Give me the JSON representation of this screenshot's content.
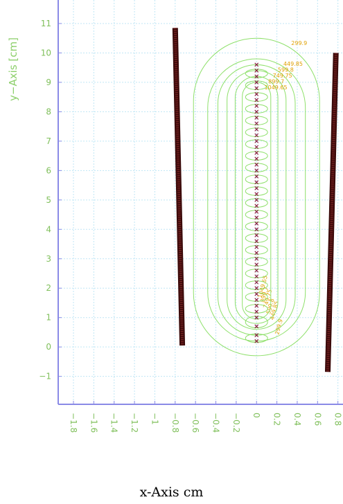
{
  "chart_data": {
    "type": "contour",
    "xlabel": "x-Axis  cm",
    "ylabel": "y−Axis [cm]",
    "xlim": [
      -1.95,
      0.85
    ],
    "ylim": [
      -1.95,
      11.8
    ],
    "x_ticks": [
      -1.8,
      -1.6,
      -1.4,
      -1.2,
      -1,
      -0.8,
      -0.6,
      -0.4,
      -0.2,
      0,
      0.2,
      0.4,
      0.6,
      0.8
    ],
    "x_tick_labels": [
      "−1.8",
      "−1.6",
      "−1.4",
      "−1.2",
      "−1",
      "−0.8",
      "−0.6",
      "−0.4",
      "−0.2",
      "0",
      "0.2",
      "0.4",
      "0.6",
      "0.8"
    ],
    "y_ticks": [
      -1,
      0,
      1,
      2,
      3,
      4,
      5,
      6,
      7,
      8,
      9,
      10,
      11
    ],
    "y_tick_labels": [
      "−1",
      "0",
      "1",
      "2",
      "3",
      "4",
      "5",
      "6",
      "7",
      "8",
      "9",
      "10",
      "11"
    ],
    "grid": true,
    "electrodes": [
      {
        "x1": -0.8,
        "y1": 10.85,
        "x2": -0.73,
        "y2": 0.05
      },
      {
        "x1": 0.78,
        "y1": 10.0,
        "x2": 0.7,
        "y2": -0.85
      }
    ],
    "charge_column": {
      "x": 0,
      "y": [
        0.2,
        0.4,
        0.7,
        1.0,
        1.2,
        1.4,
        1.6,
        1.8,
        2.0,
        2.2,
        2.4,
        2.6,
        2.8,
        3.0,
        3.2,
        3.4,
        3.6,
        3.8,
        4.0,
        4.2,
        4.4,
        4.6,
        4.8,
        5.0,
        5.2,
        5.4,
        5.6,
        5.8,
        6.0,
        6.2,
        6.4,
        6.6,
        6.8,
        7.0,
        7.2,
        7.4,
        7.6,
        7.8,
        8.0,
        8.2,
        8.4,
        8.6,
        8.8,
        9.0,
        9.2,
        9.4,
        9.6
      ]
    },
    "contour_levels": [
      {
        "label": "299.9",
        "half_width": 0.62,
        "y_top": 10.5,
        "y_bottom": -0.3
      },
      {
        "label": "449.85",
        "half_width": 0.48,
        "y_top": 9.8,
        "y_bottom": 0.2
      },
      {
        "label": "599.8",
        "half_width": 0.38,
        "y_top": 9.6,
        "y_bottom": 0.4
      },
      {
        "label": "749.75",
        "half_width": 0.29,
        "y_top": 9.4,
        "y_bottom": 0.6
      },
      {
        "label": "899.7",
        "half_width": 0.21,
        "y_top": 9.2,
        "y_bottom": 0.8
      },
      {
        "label": "1049.65",
        "half_width": 0.14,
        "y_top": 9.0,
        "y_bottom": 0.95
      }
    ]
  }
}
